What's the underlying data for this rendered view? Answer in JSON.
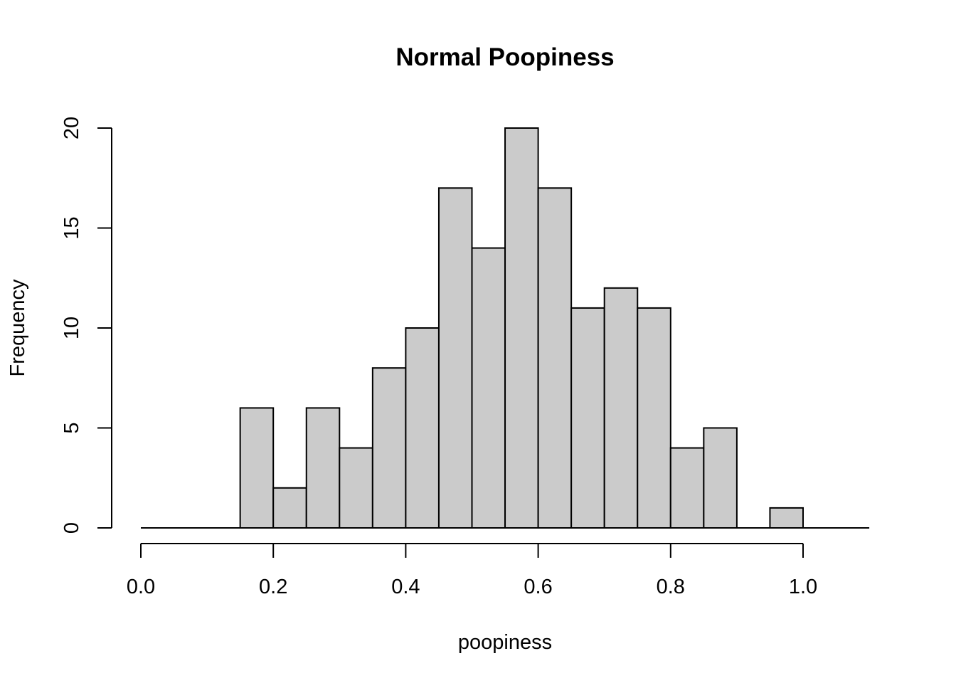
{
  "chart_data": {
    "type": "bar",
    "title": "Normal Poopiness",
    "xlabel": "poopiness",
    "ylabel": "Frequency",
    "bin_width": 0.05,
    "bins": [
      {
        "x0": 0.0,
        "x1": 0.05,
        "count": 0
      },
      {
        "x0": 0.05,
        "x1": 0.1,
        "count": 0
      },
      {
        "x0": 0.1,
        "x1": 0.15,
        "count": 0
      },
      {
        "x0": 0.15,
        "x1": 0.2,
        "count": 6
      },
      {
        "x0": 0.2,
        "x1": 0.25,
        "count": 2
      },
      {
        "x0": 0.25,
        "x1": 0.3,
        "count": 6
      },
      {
        "x0": 0.3,
        "x1": 0.35,
        "count": 4
      },
      {
        "x0": 0.35,
        "x1": 0.4,
        "count": 8
      },
      {
        "x0": 0.4,
        "x1": 0.45,
        "count": 10
      },
      {
        "x0": 0.45,
        "x1": 0.5,
        "count": 17
      },
      {
        "x0": 0.5,
        "x1": 0.55,
        "count": 14
      },
      {
        "x0": 0.55,
        "x1": 0.6,
        "count": 20
      },
      {
        "x0": 0.6,
        "x1": 0.65,
        "count": 17
      },
      {
        "x0": 0.65,
        "x1": 0.7,
        "count": 11
      },
      {
        "x0": 0.7,
        "x1": 0.75,
        "count": 12
      },
      {
        "x0": 0.75,
        "x1": 0.8,
        "count": 11
      },
      {
        "x0": 0.8,
        "x1": 0.85,
        "count": 4
      },
      {
        "x0": 0.85,
        "x1": 0.9,
        "count": 5
      },
      {
        "x0": 0.9,
        "x1": 0.95,
        "count": 0
      },
      {
        "x0": 0.95,
        "x1": 1.0,
        "count": 1
      },
      {
        "x0": 1.0,
        "x1": 1.05,
        "count": 0
      },
      {
        "x0": 1.05,
        "x1": 1.1,
        "count": 0
      }
    ],
    "xlim": [
      0,
      1.1
    ],
    "ylim": [
      0,
      20
    ],
    "x_ticks": [
      {
        "value": 0.0,
        "label": "0.0"
      },
      {
        "value": 0.2,
        "label": "0.2"
      },
      {
        "value": 0.4,
        "label": "0.4"
      },
      {
        "value": 0.6,
        "label": "0.6"
      },
      {
        "value": 0.8,
        "label": "0.8"
      },
      {
        "value": 1.0,
        "label": "1.0"
      }
    ],
    "y_ticks": [
      {
        "value": 0,
        "label": "0"
      },
      {
        "value": 5,
        "label": "5"
      },
      {
        "value": 10,
        "label": "10"
      },
      {
        "value": 15,
        "label": "15"
      },
      {
        "value": 20,
        "label": "20"
      }
    ],
    "grid": false,
    "legend": "none",
    "colors": {
      "bar_fill": "#cbcbcb",
      "bar_stroke": "#000000"
    }
  }
}
